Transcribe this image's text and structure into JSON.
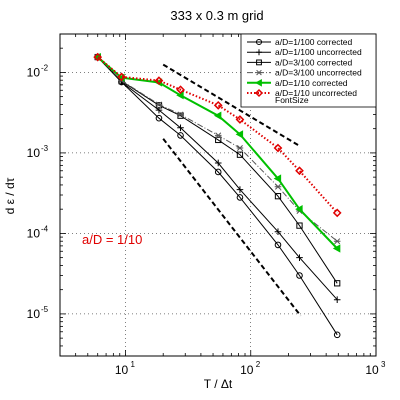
{
  "chart_data": {
    "type": "line",
    "title": "333 x 0.3 m grid",
    "xlabel": "T / Δt",
    "ylabel": "d ε / dτ",
    "xscale": "log",
    "yscale": "log",
    "xlim": [
      3,
      1000
    ],
    "ylim": [
      3e-06,
      0.03
    ],
    "x_ticks": [
      {
        "value": 10,
        "base": "10",
        "exp": "1"
      },
      {
        "value": 100,
        "base": "10",
        "exp": "2"
      },
      {
        "value": 1000,
        "base": "10",
        "exp": "3"
      }
    ],
    "y_ticks": [
      {
        "value": 1e-05,
        "base": "10",
        "exp": "-5"
      },
      {
        "value": 0.0001,
        "base": "10",
        "exp": "-4"
      },
      {
        "value": 0.001,
        "base": "10",
        "exp": "-3"
      },
      {
        "value": 0.01,
        "base": "10",
        "exp": "-2"
      }
    ],
    "annotation": "a/D = 1/10",
    "legend_position": "top-right",
    "legend_extra": "FontSize",
    "series": [
      {
        "name": "a/D=1/100 corrected",
        "color": "#000000",
        "dash": "solid",
        "marker": "circle",
        "x": [
          6,
          9.3,
          18.5,
          27.5,
          55,
          82,
          165,
          245,
          490
        ],
        "y": [
          0.0155,
          0.0076,
          0.0027,
          0.00165,
          0.00058,
          0.00028,
          7.2e-05,
          3e-05,
          5.5e-06
        ]
      },
      {
        "name": "a/D=1/100 uncorrected",
        "color": "#000000",
        "dash": "solid",
        "marker": "plus",
        "x": [
          6,
          9.3,
          18.5,
          27.5,
          55,
          82,
          165,
          245,
          490
        ],
        "y": [
          0.0155,
          0.0076,
          0.0034,
          0.00205,
          0.00075,
          0.00035,
          0.000105,
          5e-05,
          1.5e-05
        ]
      },
      {
        "name": "a/D=3/100 corrected",
        "color": "#000000",
        "dash": "solid",
        "marker": "square",
        "x": [
          6,
          9.3,
          18.5,
          27.5,
          55,
          82,
          165,
          245,
          490
        ],
        "y": [
          0.0155,
          0.0078,
          0.0039,
          0.0029,
          0.00145,
          0.00095,
          0.00029,
          0.000125,
          2.4e-05
        ]
      },
      {
        "name": "a/D=3/100 uncorrected",
        "color": "#555555",
        "dash": "dashdot",
        "marker": "star",
        "x": [
          6,
          9.3,
          18.5,
          27.5,
          55,
          82,
          165,
          245,
          490
        ],
        "y": [
          0.0155,
          0.0079,
          0.004,
          0.003,
          0.00165,
          0.00115,
          0.00038,
          0.00019,
          8e-05
        ]
      },
      {
        "name": "a/D=1/10 corrected",
        "color": "#00c000",
        "dash": "solid",
        "marker": "triangle",
        "x": [
          6,
          9.3,
          18.5,
          27.5,
          55,
          82,
          165,
          245,
          490
        ],
        "y": [
          0.0155,
          0.0086,
          0.0075,
          0.0052,
          0.0029,
          0.0017,
          0.00048,
          0.0002,
          6.5e-05
        ]
      },
      {
        "name": "a/D=1/10 uncorrected",
        "color": "#e00000",
        "dash": "dotted",
        "marker": "diamond",
        "x": [
          6,
          9.3,
          18.5,
          27.5,
          55,
          82,
          165,
          245,
          490
        ],
        "y": [
          0.0155,
          0.0088,
          0.0079,
          0.0061,
          0.0039,
          0.0026,
          0.00115,
          0.0006,
          0.00018
        ]
      }
    ],
    "reference_lines": [
      {
        "x": [
          20,
          250
        ],
        "y": [
          0.0125,
          0.0012
        ]
      },
      {
        "x": [
          20,
          250
        ],
        "y": [
          0.0015,
          9.5e-06
        ]
      }
    ]
  }
}
